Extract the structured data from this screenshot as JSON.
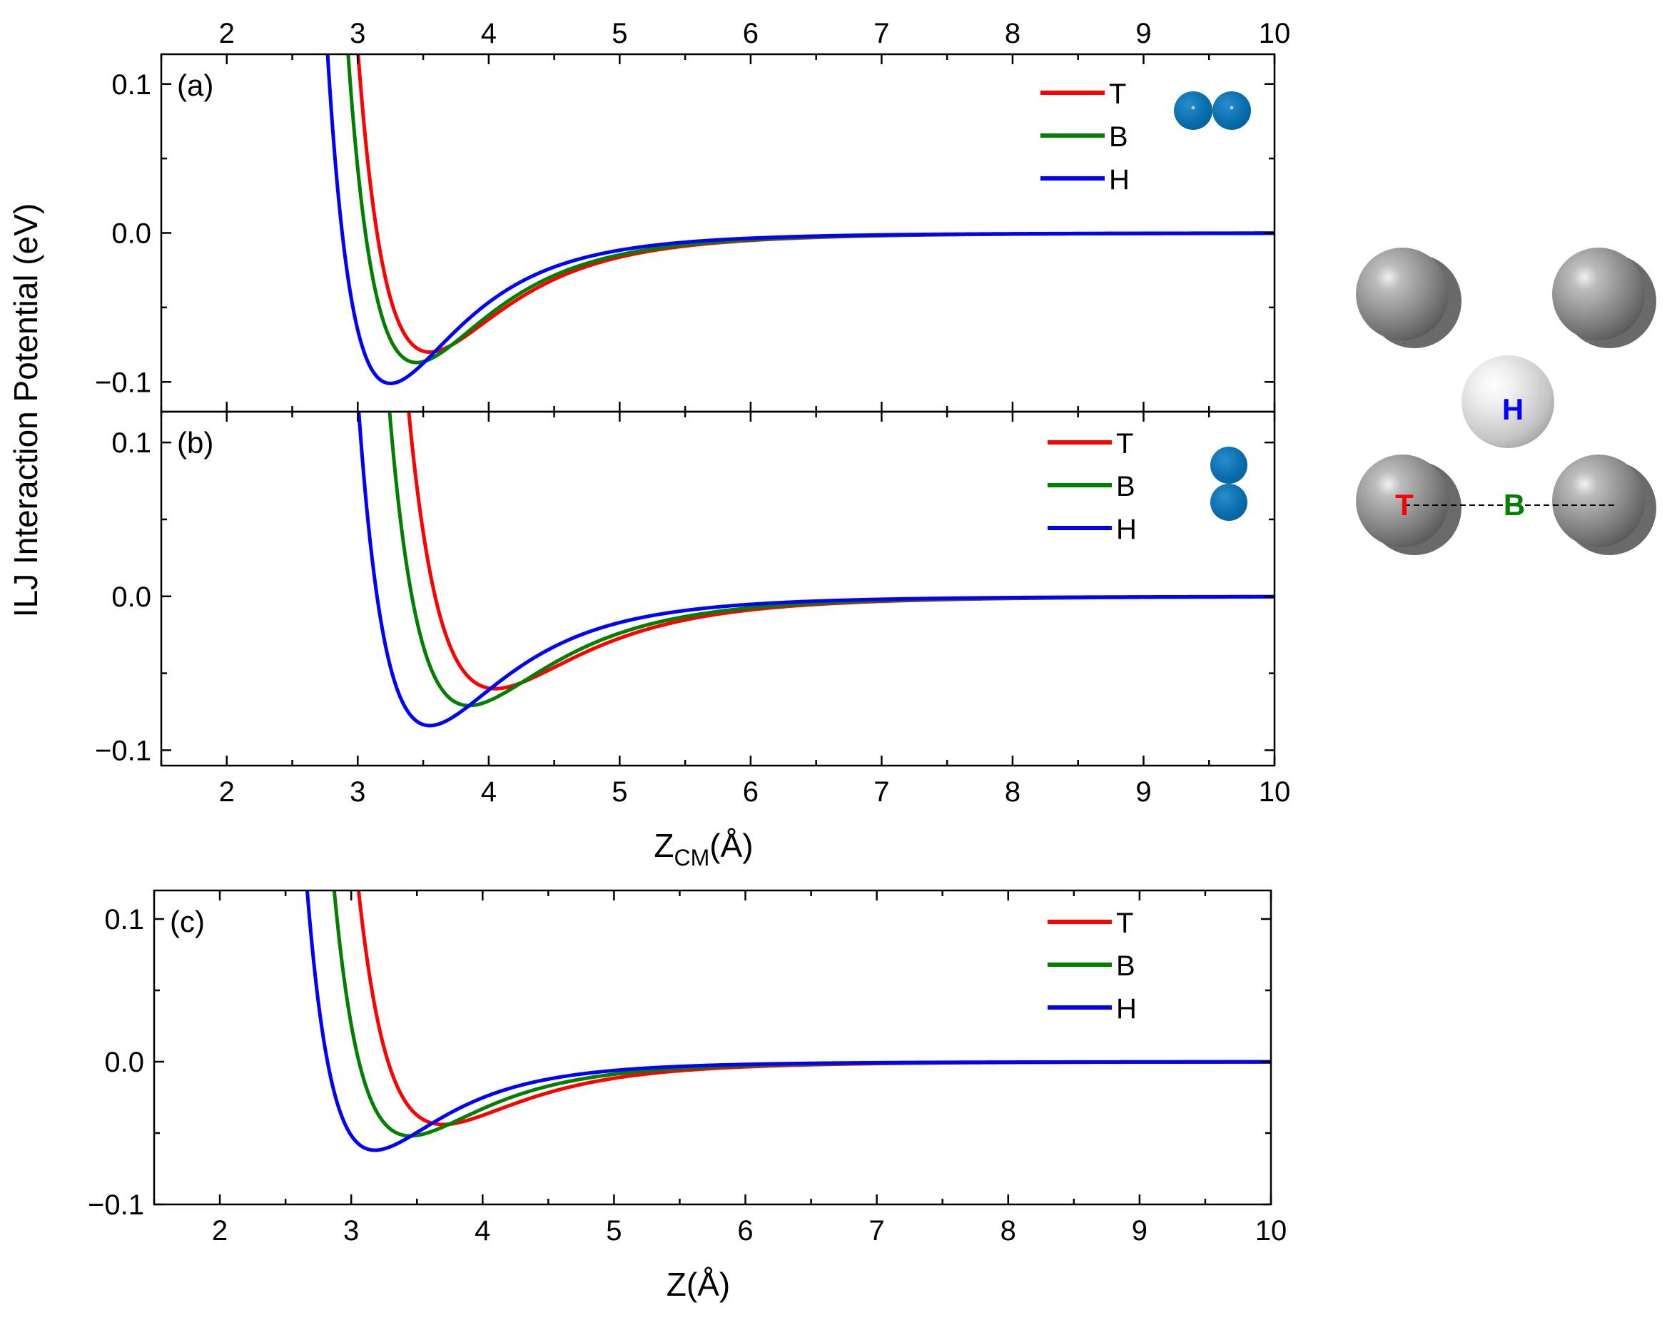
{
  "figure": {
    "ylabel": "ILJ Interaction Potential (eV)"
  },
  "chart_data": [
    {
      "type": "line",
      "panel_label": "(a)",
      "xlim": [
        1.5,
        10
      ],
      "ylim": [
        -0.12,
        0.12
      ],
      "x_ticks": [
        2,
        3,
        4,
        5,
        6,
        7,
        8,
        9,
        10
      ],
      "y_ticks": [
        -0.1,
        0.0,
        0.1
      ],
      "y_tick_labels": [
        "−0.1",
        "0.0",
        "0.1"
      ],
      "top_axis_labels": true,
      "bottom_axis_labels": false,
      "xlabel": "",
      "legend": [
        "T",
        "B",
        "H"
      ],
      "legend_position": "top-right",
      "inset": "horizontal-dimer",
      "series": [
        {
          "name": "T",
          "color": "#ff0000",
          "epsilon": 0.08,
          "r_min": 3.55,
          "beta": 8.0
        },
        {
          "name": "B",
          "color": "#007f00",
          "epsilon": 0.087,
          "r_min": 3.45,
          "beta": 8.0
        },
        {
          "name": "H",
          "color": "#0000ff",
          "epsilon": 0.101,
          "r_min": 3.25,
          "beta": 8.0
        }
      ]
    },
    {
      "type": "line",
      "panel_label": "(b)",
      "xlim": [
        1.5,
        10
      ],
      "ylim": [
        -0.11,
        0.12
      ],
      "x_ticks": [
        2,
        3,
        4,
        5,
        6,
        7,
        8,
        9,
        10
      ],
      "y_ticks": [
        -0.1,
        0.0,
        0.1
      ],
      "y_tick_labels": [
        "−0.1",
        "0.0",
        "0.1"
      ],
      "top_axis_labels": false,
      "bottom_axis_labels": true,
      "xlabel_main": "Z",
      "xlabel_sub": "CM",
      "xlabel_tail": "(Å)",
      "legend": [
        "T",
        "B",
        "H"
      ],
      "legend_position": "top-right",
      "inset": "vertical-dimer",
      "series": [
        {
          "name": "T",
          "color": "#ff0000",
          "epsilon": 0.06,
          "r_min": 4.05,
          "beta": 8.0
        },
        {
          "name": "B",
          "color": "#007f00",
          "epsilon": 0.071,
          "r_min": 3.85,
          "beta": 8.0
        },
        {
          "name": "H",
          "color": "#0000ff",
          "epsilon": 0.084,
          "r_min": 3.55,
          "beta": 8.0
        }
      ]
    },
    {
      "type": "line",
      "panel_label": "(c)",
      "xlim": [
        1.5,
        10
      ],
      "ylim": [
        -0.1,
        0.12
      ],
      "x_ticks": [
        2,
        3,
        4,
        5,
        6,
        7,
        8,
        9,
        10
      ],
      "y_ticks": [
        -0.1,
        0.0,
        0.1
      ],
      "y_tick_labels": [
        "−0.1",
        "0.0",
        "0.1"
      ],
      "top_axis_labels": false,
      "bottom_axis_labels": true,
      "xlabel": "Z(Å)",
      "legend": [
        "T",
        "B",
        "H"
      ],
      "legend_position": "top-right",
      "inset": "",
      "series": [
        {
          "name": "T",
          "color": "#ff0000",
          "epsilon": 0.044,
          "r_min": 3.7,
          "beta": 8.0
        },
        {
          "name": "B",
          "color": "#007f00",
          "epsilon": 0.052,
          "r_min": 3.45,
          "beta": 8.0
        },
        {
          "name": "H",
          "color": "#0000ff",
          "epsilon": 0.062,
          "r_min": 3.18,
          "beta": 8.0
        }
      ]
    }
  ],
  "site_diagram": {
    "labels": {
      "H": "H",
      "T": "T",
      "B": "B"
    },
    "colors": {
      "H": "#0000ff",
      "T": "#ff0000",
      "B": "#007f00"
    }
  }
}
